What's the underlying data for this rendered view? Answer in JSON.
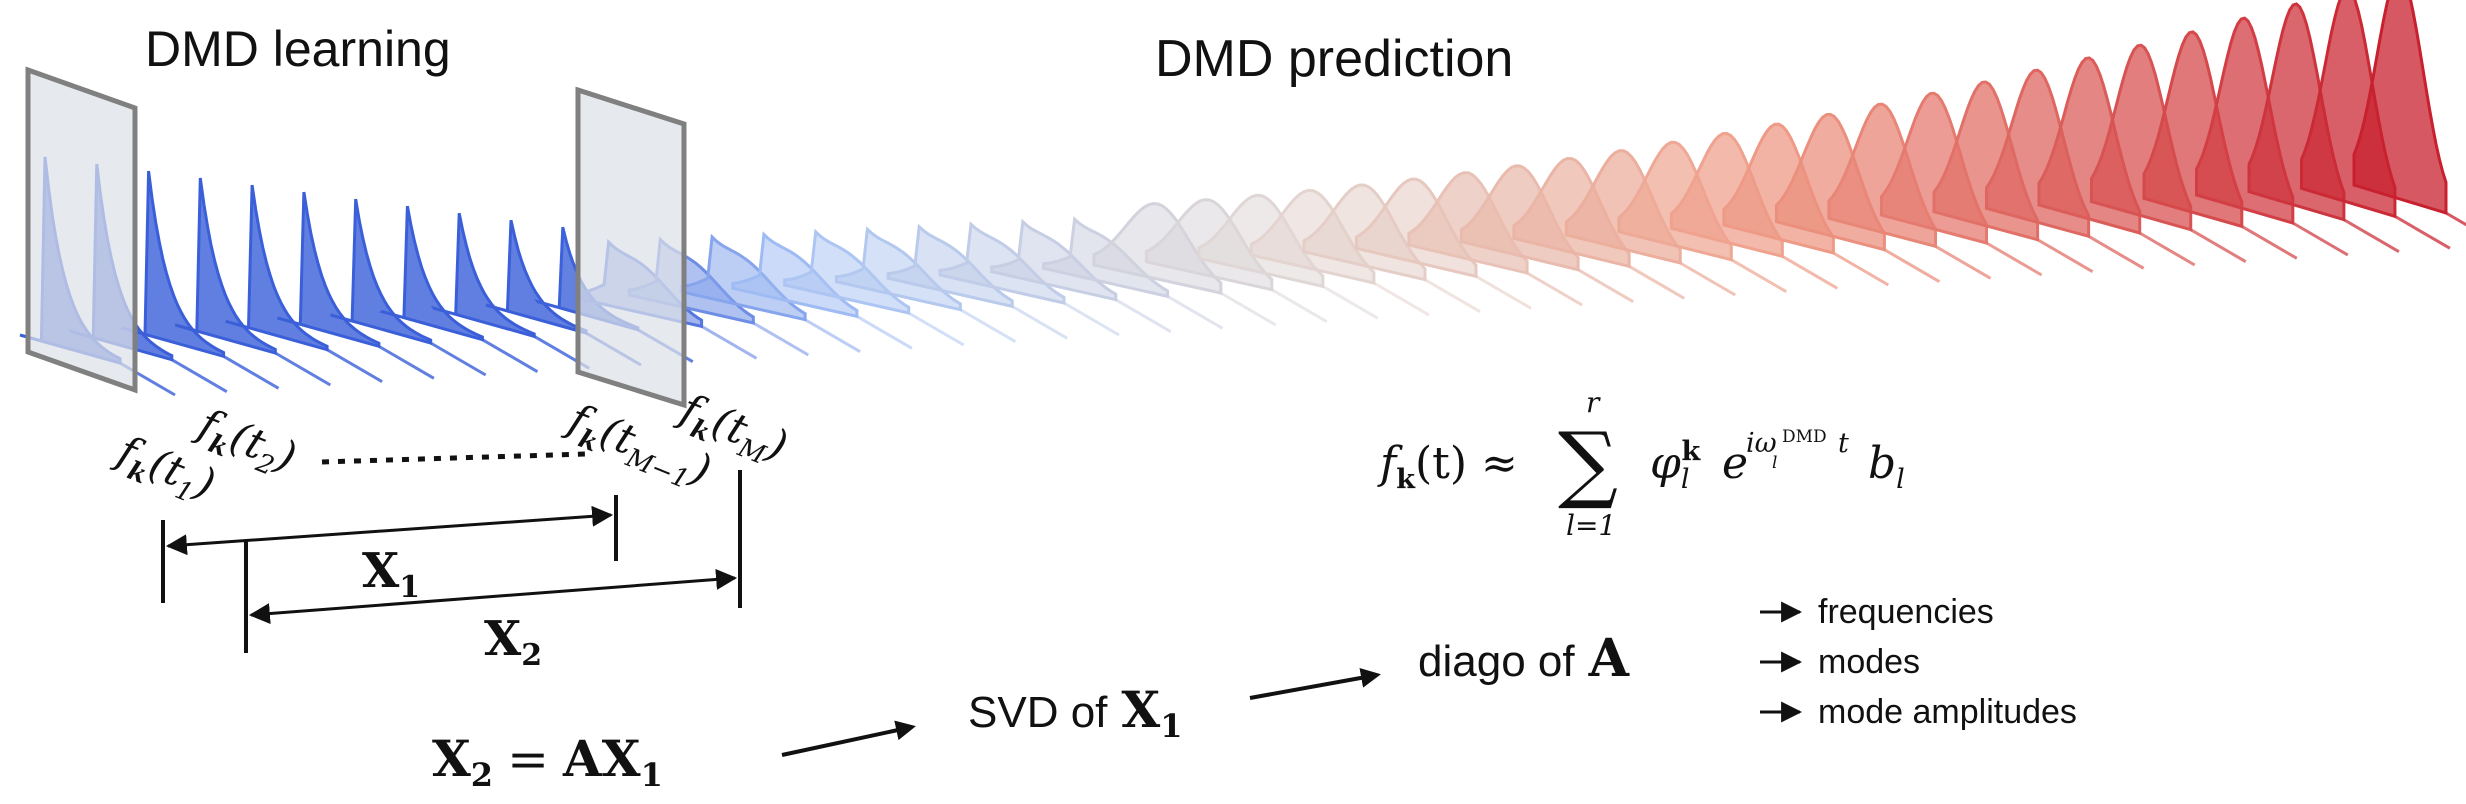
{
  "titles": {
    "learning": "DMD learning",
    "prediction": "DMD prediction"
  },
  "snapshots": {
    "f": "f",
    "k": "k",
    "t": "t",
    "sub1": "1",
    "sub2": "2",
    "subM1": "M−1",
    "subM": "M"
  },
  "matrices": {
    "X": "X",
    "one": "1",
    "two": "2",
    "A": "A"
  },
  "formula": {
    "lhs": "f",
    "lhs_sub": "k",
    "lhs_arg": "(t) ≈",
    "sum": "∑",
    "sum_top": "r",
    "sum_bottom": "l=1",
    "phi": "φ",
    "phi_sub": "l",
    "phi_sup": "k",
    "exp": "e",
    "exp_i": "iω",
    "exp_sub": "l",
    "exp_dmd": "DMD",
    "exp_t": "t",
    "b": "b",
    "b_sub": "l"
  },
  "pipeline": {
    "eq": "=",
    "svd_prefix": "SVD of",
    "diago_prefix": "diago of"
  },
  "outputs": [
    "frequencies",
    "modes",
    "mode amplitudes"
  ],
  "colors": {
    "learning_blue": "#3a5fd9",
    "pred_light_blue": "#a9c4f5",
    "pred_mid": "#e2d8d4",
    "pred_salmon": "#f0a08a",
    "pred_red": "#c8202e",
    "frame_fill": "#dde0e8",
    "frame_stroke": "#808080"
  },
  "icons": {
    "arrow": "arrow-right-icon"
  }
}
